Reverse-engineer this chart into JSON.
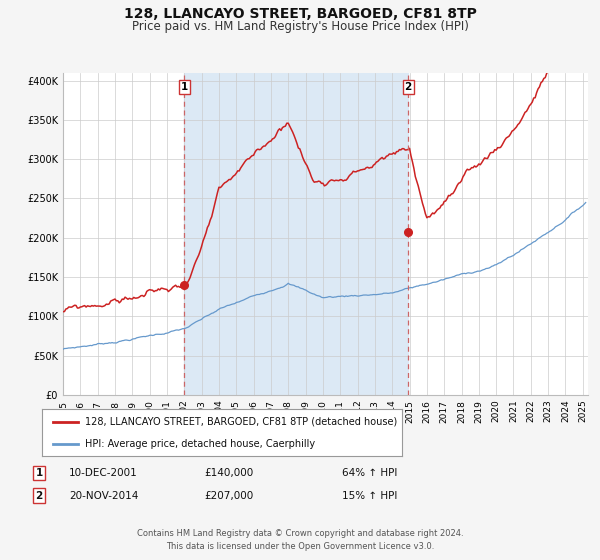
{
  "title": "128, LLANCAYO STREET, BARGOED, CF81 8TP",
  "subtitle": "Price paid vs. HM Land Registry's House Price Index (HPI)",
  "title_fontsize": 10,
  "subtitle_fontsize": 8.5,
  "background_color": "#f5f5f5",
  "plot_background": "#ffffff",
  "shade_color": "#dce9f5",
  "grid_color": "#cccccc",
  "red_line_color": "#cc2222",
  "blue_line_color": "#6699cc",
  "marker_color": "#cc2222",
  "dashed_line_color": "#cc6666",
  "ylim": [
    0,
    410000
  ],
  "yticks": [
    0,
    50000,
    100000,
    150000,
    200000,
    250000,
    300000,
    350000,
    400000
  ],
  "ytick_labels": [
    "£0",
    "£50K",
    "£100K",
    "£150K",
    "£200K",
    "£250K",
    "£300K",
    "£350K",
    "£400K"
  ],
  "xmin": 1995.0,
  "xmax": 2025.3,
  "xticks": [
    1995,
    1996,
    1997,
    1998,
    1999,
    2000,
    2001,
    2002,
    2003,
    2004,
    2005,
    2006,
    2007,
    2008,
    2009,
    2010,
    2011,
    2012,
    2013,
    2014,
    2015,
    2016,
    2017,
    2018,
    2019,
    2020,
    2021,
    2022,
    2023,
    2024,
    2025
  ],
  "event1_x": 2002.0,
  "event1_label": "1",
  "event1_date": "10-DEC-2001",
  "event1_price": "£140,000",
  "event1_hpi": "64% ↑ HPI",
  "event1_marker_y": 140000,
  "event2_x": 2014.92,
  "event2_label": "2",
  "event2_date": "20-NOV-2014",
  "event2_price": "£207,000",
  "event2_hpi": "15% ↑ HPI",
  "event2_marker_y": 207000,
  "legend_red_label": "128, LLANCAYO STREET, BARGOED, CF81 8TP (detached house)",
  "legend_blue_label": "HPI: Average price, detached house, Caerphilly",
  "footer1": "Contains HM Land Registry data © Crown copyright and database right 2024.",
  "footer2": "This data is licensed under the Open Government Licence v3.0."
}
